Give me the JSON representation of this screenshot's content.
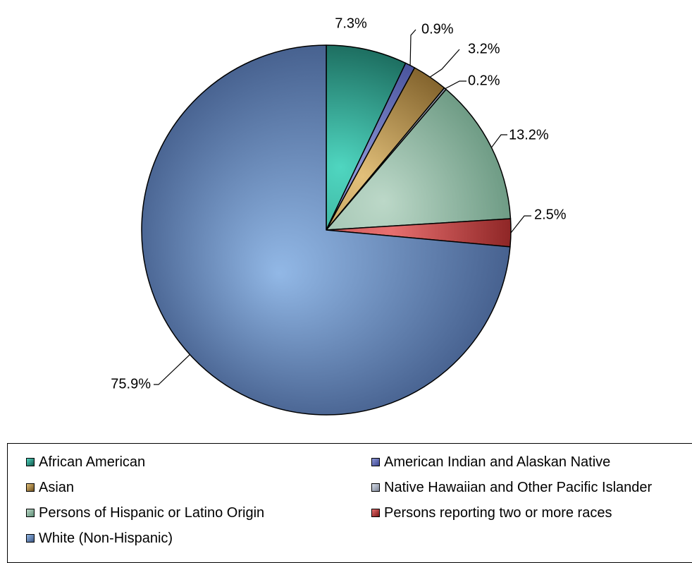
{
  "chart_data": {
    "type": "pie",
    "start_angle_deg": 0,
    "direction": "clockwise",
    "categories": [
      "African American",
      "American Indian and Alaskan Native",
      "Asian",
      "Native Hawaiian and Other Pacific Islander",
      "Persons of Hispanic or Latino Origin",
      "Persons reporting two or more races",
      "White (Non-Hispanic)"
    ],
    "values": [
      7.3,
      0.9,
      3.2,
      0.2,
      13.2,
      2.5,
      75.9
    ],
    "labels": [
      "7.3%",
      "0.9%",
      "3.2%",
      "0.2%",
      "13.2%",
      "2.5%",
      "75.9%"
    ],
    "colors": {
      "light": [
        "#4fd6c0",
        "#8c96d6",
        "#e2c07a",
        "#d6dde8",
        "#bcd8c8",
        "#e87070",
        "#92b8e6"
      ],
      "dark": [
        "#12574b",
        "#3b4590",
        "#6e4f1c",
        "#7f8799",
        "#5d8e76",
        "#7a1515",
        "#3e5785"
      ]
    },
    "legend_position": "bottom"
  }
}
